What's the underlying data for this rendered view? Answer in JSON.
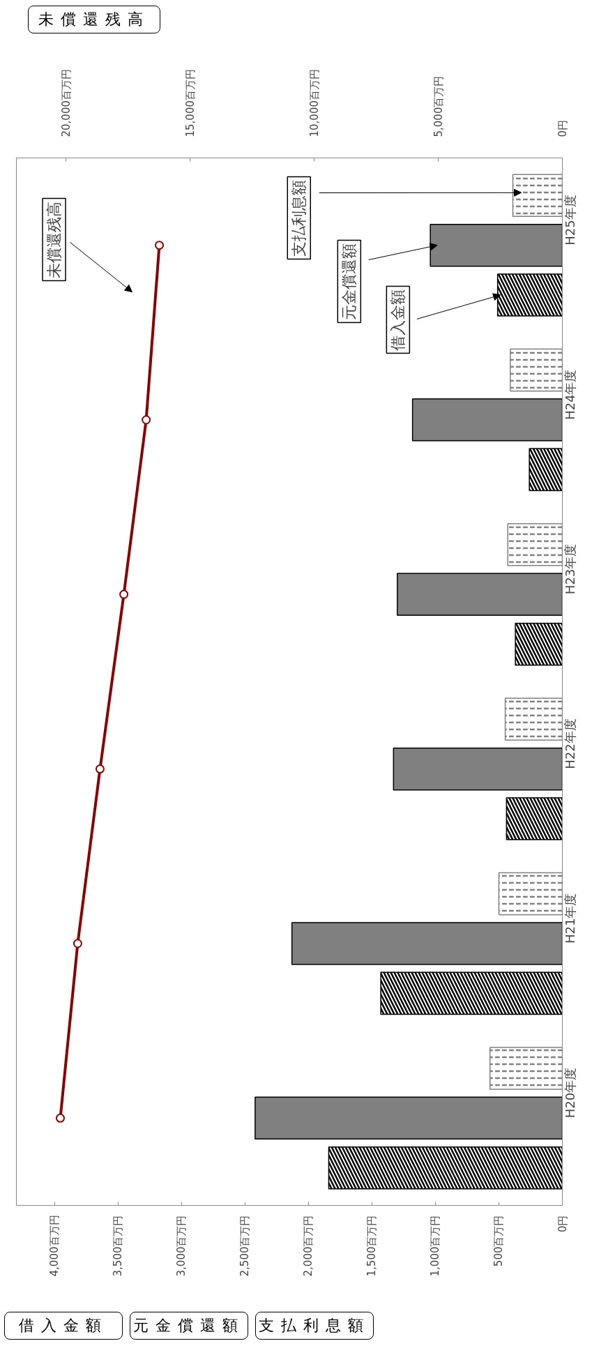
{
  "chart_data": {
    "type": "bar",
    "orientation": "horizontal",
    "legend": false,
    "grid": false,
    "categories": [
      "H25年度",
      "H24年度",
      "H23年度",
      "H22年度",
      "H21年度",
      "H20年度"
    ],
    "series": [
      {
        "name": "借入金額",
        "color": "#000000",
        "values": [
          510,
          260,
          370,
          440,
          1430,
          1840
        ]
      },
      {
        "name": "元金償還額",
        "color": "#808080",
        "values": [
          1040,
          1180,
          1300,
          1330,
          2130,
          2420
        ]
      },
      {
        "name": "支払利息額",
        "color": "#808080",
        "values": [
          390,
          410,
          430,
          450,
          500,
          570
        ]
      },
      {
        "name": "未償還残高",
        "type": "line",
        "axis": "x2",
        "color": "#8b0000",
        "marker": "circle",
        "values": [
          16240,
          16770,
          17670,
          18630,
          19530,
          20230
        ]
      }
    ],
    "xlim": [
      4300,
      0
    ],
    "xticks": [
      {
        "value": 4000,
        "label": "4,000百万円"
      },
      {
        "value": 3500,
        "label": "3,500百万円"
      },
      {
        "value": 3000,
        "label": "3,000百万円"
      },
      {
        "value": 2500,
        "label": "2,500百万円"
      },
      {
        "value": 2000,
        "label": "2,000百万円"
      },
      {
        "value": 1500,
        "label": "1,500百万円"
      },
      {
        "value": 1000,
        "label": "1,000百万円"
      },
      {
        "value": 500,
        "label": "500百万円"
      },
      {
        "value": 0,
        "label": "0円"
      }
    ],
    "x2lim": [
      22000,
      0
    ],
    "x2ticks": [
      {
        "value": 20000,
        "label": "20,000百万円"
      },
      {
        "value": 15000,
        "label": "15,000百万円"
      },
      {
        "value": 10000,
        "label": "10,000百万円"
      },
      {
        "value": 5000,
        "label": "5,000百万円"
      },
      {
        "value": 0,
        "label": "0円"
      }
    ],
    "x2label": "未償還残高",
    "annotations": [
      "借入金額",
      "元金償還額",
      "支払利息額"
    ]
  }
}
